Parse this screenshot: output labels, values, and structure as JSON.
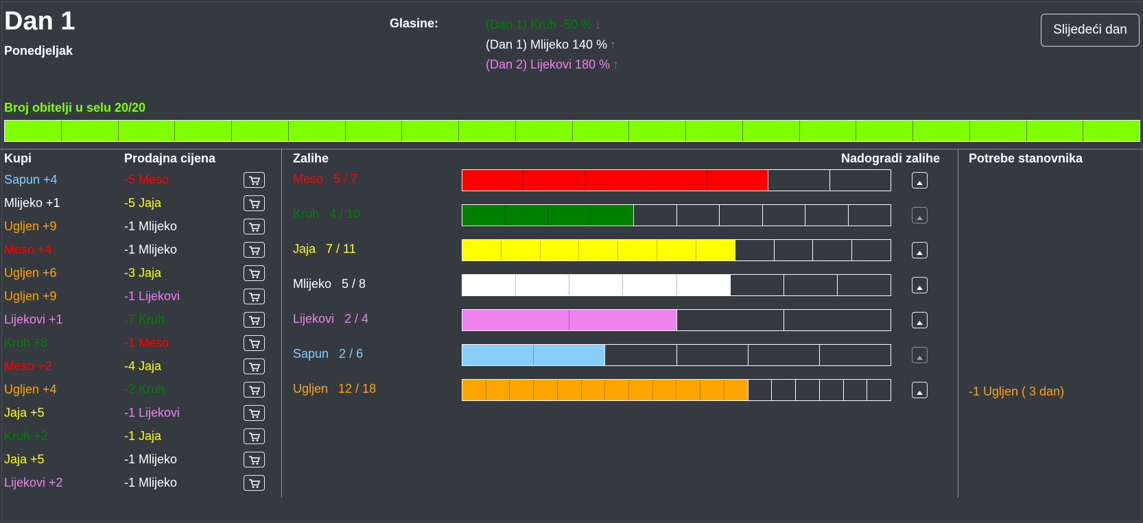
{
  "colors": {
    "meso": "#ff0000",
    "kruh": "#008000",
    "jaja": "#ffff00",
    "mlijeko": "#ffffff",
    "lijekovi": "#ee82ee",
    "sapun": "#87cefa",
    "ugljen": "#ffa500",
    "families": "#7fff00",
    "arrow_down": "#dc3545",
    "arrow_up": "#28a745",
    "background": "#343a40"
  },
  "header": {
    "day_title": "Dan 1",
    "day_name": "Ponedjeljak",
    "rumors_label": "Glasine:",
    "next_day_label": "Slijedeći dan"
  },
  "rumors": [
    {
      "text": "(Dan 1) Kruh -50 %",
      "color": "#008000",
      "direction": "down",
      "icon": "arrow-down-icon"
    },
    {
      "text": "(Dan 1) Mlijeko 140 %",
      "color": "#ffffff",
      "direction": "up",
      "icon": "arrow-up-icon"
    },
    {
      "text": "(Dan 2) Lijekovi 180 %",
      "color": "#ee82ee",
      "direction": "up",
      "icon": "arrow-up-icon"
    }
  ],
  "families": {
    "label": "Broj obitelji u selu 20/20",
    "current": 20,
    "max": 20
  },
  "market": {
    "buy_header": "Kupi",
    "sell_header": "Prodajna cijena",
    "cart_icon": "cart-icon",
    "rows": [
      {
        "buy": "Sapun +4",
        "buy_color": "#87cefa",
        "sell": "-5 Meso",
        "sell_color": "#ff0000"
      },
      {
        "buy": "Mlijeko +1",
        "buy_color": "#ffffff",
        "sell": "-5 Jaja",
        "sell_color": "#ffff00"
      },
      {
        "buy": "Ugljen +9",
        "buy_color": "#ffa500",
        "sell": "-1 Mlijeko",
        "sell_color": "#ffffff"
      },
      {
        "buy": "Meso +4",
        "buy_color": "#ff0000",
        "sell": "-1 Mlijeko",
        "sell_color": "#ffffff"
      },
      {
        "buy": "Ugljen +6",
        "buy_color": "#ffa500",
        "sell": "-3 Jaja",
        "sell_color": "#ffff00"
      },
      {
        "buy": "Ugljen +9",
        "buy_color": "#ffa500",
        "sell": "-1 Lijekovi",
        "sell_color": "#ee82ee"
      },
      {
        "buy": "Lijekovi +1",
        "buy_color": "#ee82ee",
        "sell": "-7 Kruh",
        "sell_color": "#008000"
      },
      {
        "buy": "Kruh +8",
        "buy_color": "#008000",
        "sell": "-1 Meso",
        "sell_color": "#ff0000"
      },
      {
        "buy": "Meso +2",
        "buy_color": "#ff0000",
        "sell": "-4 Jaja",
        "sell_color": "#ffff00"
      },
      {
        "buy": "Ugljen +4",
        "buy_color": "#ffa500",
        "sell": "-2 Kruh",
        "sell_color": "#008000"
      },
      {
        "buy": "Jaja +5",
        "buy_color": "#ffff00",
        "sell": "-1 Lijekovi",
        "sell_color": "#ee82ee"
      },
      {
        "buy": "Kruh +2",
        "buy_color": "#008000",
        "sell": "-1 Jaja",
        "sell_color": "#ffff00"
      },
      {
        "buy": "Jaja +5",
        "buy_color": "#ffff00",
        "sell": "-1 Mlijeko",
        "sell_color": "#ffffff"
      },
      {
        "buy": "Lijekovi +2",
        "buy_color": "#ee82ee",
        "sell": "-1 Mlijeko",
        "sell_color": "#ffffff"
      }
    ]
  },
  "stock": {
    "header": "Zalihe",
    "upgrade_header": "Nadogradi zalihe",
    "upgrade_icon": "caret-up-icon",
    "items": [
      {
        "label": "Meso   5 / 7",
        "current": 5,
        "max": 7,
        "color": "#ff0000",
        "upgrade_enabled": true
      },
      {
        "label": "Kruh   4 / 10",
        "current": 4,
        "max": 10,
        "color": "#008000",
        "upgrade_enabled": false
      },
      {
        "label": "Jaja   7 / 11",
        "current": 7,
        "max": 11,
        "color": "#ffff00",
        "upgrade_enabled": true
      },
      {
        "label": "Mlijeko   5 / 8",
        "current": 5,
        "max": 8,
        "color": "#ffffff",
        "upgrade_enabled": true
      },
      {
        "label": "Lijekovi   2 / 4",
        "current": 2,
        "max": 4,
        "color": "#ee82ee",
        "upgrade_enabled": true
      },
      {
        "label": "Sapun   2 / 6",
        "current": 2,
        "max": 6,
        "color": "#87cefa",
        "upgrade_enabled": false
      },
      {
        "label": "Ugljen   12 / 18",
        "current": 12,
        "max": 18,
        "color": "#ffa500",
        "upgrade_enabled": true
      }
    ]
  },
  "needs": {
    "header": "Potrebe stanovnika",
    "items": [
      {
        "text": "-1 Ugljen ( 3 dan)",
        "color": "#ffa500"
      }
    ]
  }
}
